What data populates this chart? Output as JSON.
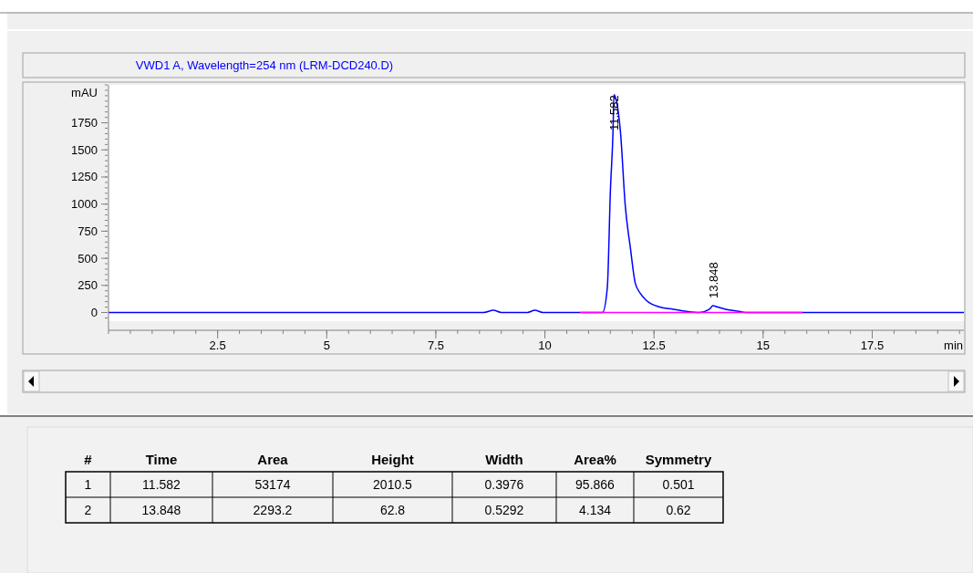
{
  "chart_data": {
    "type": "line",
    "title": "VWD1 A, Wavelength=254 nm (LRM-DCD240.D)",
    "ylabel": "mAU",
    "xlabel": "min",
    "xlim": [
      0,
      19.6
    ],
    "ylim": [
      -80,
      2100
    ],
    "xticks": [
      2.5,
      5,
      7.5,
      10,
      12.5,
      15,
      17.5
    ],
    "yticks": [
      0,
      250,
      500,
      750,
      1000,
      1250,
      1500,
      1750
    ],
    "series": [
      {
        "color": "#0000ff",
        "x": [
          0,
          8.6,
          8.82,
          9.0,
          9.6,
          9.77,
          9.95,
          10.8,
          11.32,
          11.43,
          11.5,
          11.56,
          11.582,
          11.64,
          11.73,
          11.84,
          11.96,
          12.07,
          12.18,
          12.33,
          12.63,
          12.94,
          13.24,
          13.54,
          13.77,
          13.848,
          13.96,
          14.14,
          14.45,
          14.6,
          19.6
        ],
        "values": [
          0,
          0,
          20,
          0,
          0,
          20,
          0,
          0,
          0,
          230,
          1120,
          1670,
          2010.5,
          1950,
          1670,
          990,
          590,
          270,
          180,
          110,
          50,
          30,
          10,
          0,
          30,
          62.8,
          50,
          30,
          10,
          0,
          0
        ]
      },
      {
        "color": "#ff00ff",
        "x": [
          10.8,
          15.9
        ],
        "values": [
          0,
          0
        ]
      }
    ],
    "annotations": [
      {
        "text": "11.582",
        "x": 11.582,
        "y": 2010.5
      },
      {
        "text": "13.848",
        "x": 13.848,
        "y": 62.8
      },
      "#",
      "Time",
      "Area",
      "Height",
      "Width",
      "Area%",
      "Symmetry",
      "1",
      "11.582",
      "53174",
      "2010.5",
      "0.3976",
      "95.866",
      "0.501",
      "2",
      "13.848",
      "2293.2",
      "62.8",
      "0.5292",
      "4.134",
      "0.62"
    ]
  }
}
